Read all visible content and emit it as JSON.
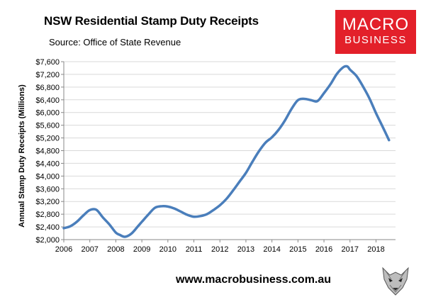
{
  "header": {
    "title": "NSW Residential Stamp Duty Receipts",
    "subtitle": "Source: Office of State Revenue"
  },
  "logo": {
    "line1": "MACRO",
    "line2": "BUSINESS",
    "color": "#e3202a"
  },
  "footer": {
    "url": "www.macrobusiness.com.au"
  },
  "wolf_icon": "wolf-head-icon",
  "chart_data": {
    "type": "line",
    "title": "NSW Residential Stamp Duty Receipts",
    "ylabel": "Annual Stamp Duty Receipts (Millions)",
    "xlabel": "",
    "x_tick_labels": [
      "2006",
      "2007",
      "2008",
      "2009",
      "2010",
      "2011",
      "2012",
      "2013",
      "2014",
      "2015",
      "2016",
      "2017",
      "2018"
    ],
    "y_tick_labels": [
      "$2,000",
      "$2,400",
      "$2,800",
      "$3,200",
      "$3,600",
      "$4,000",
      "$4,400",
      "$4,800",
      "$5,200",
      "$5,600",
      "$6,000",
      "$6,400",
      "$6,800",
      "$7,200",
      "$7,600"
    ],
    "ylim": [
      2000,
      7600
    ],
    "xlim": [
      2006,
      2018.75
    ],
    "grid": "horizontal",
    "line_color": "#4a7ebb",
    "series": [
      {
        "x": [
          2006.0,
          2006.25,
          2006.5,
          2006.75,
          2007.0,
          2007.25,
          2007.5,
          2007.75,
          2008.0,
          2008.15,
          2008.35,
          2008.6,
          2008.85,
          2009.0,
          2009.25,
          2009.5,
          2009.75,
          2010.0,
          2010.25,
          2010.5,
          2010.75,
          2011.0,
          2011.25,
          2011.5,
          2011.75,
          2012.0,
          2012.25,
          2012.5,
          2012.75,
          2013.0,
          2013.25,
          2013.5,
          2013.75,
          2014.0,
          2014.25,
          2014.5,
          2014.75,
          2015.0,
          2015.25,
          2015.5,
          2015.75,
          2016.0,
          2016.25,
          2016.5,
          2016.75,
          2016.9,
          2017.0,
          2017.25,
          2017.5,
          2017.75,
          2018.0,
          2018.25,
          2018.5
        ],
        "y": [
          2360,
          2420,
          2560,
          2760,
          2930,
          2940,
          2700,
          2480,
          2220,
          2150,
          2090,
          2190,
          2420,
          2560,
          2790,
          3000,
          3050,
          3040,
          2980,
          2880,
          2780,
          2720,
          2740,
          2800,
          2930,
          3080,
          3280,
          3540,
          3820,
          4100,
          4450,
          4780,
          5050,
          5220,
          5450,
          5750,
          6110,
          6390,
          6430,
          6390,
          6360,
          6610,
          6890,
          7220,
          7430,
          7450,
          7350,
          7150,
          6820,
          6440,
          5980,
          5560,
          5130
        ]
      }
    ]
  }
}
